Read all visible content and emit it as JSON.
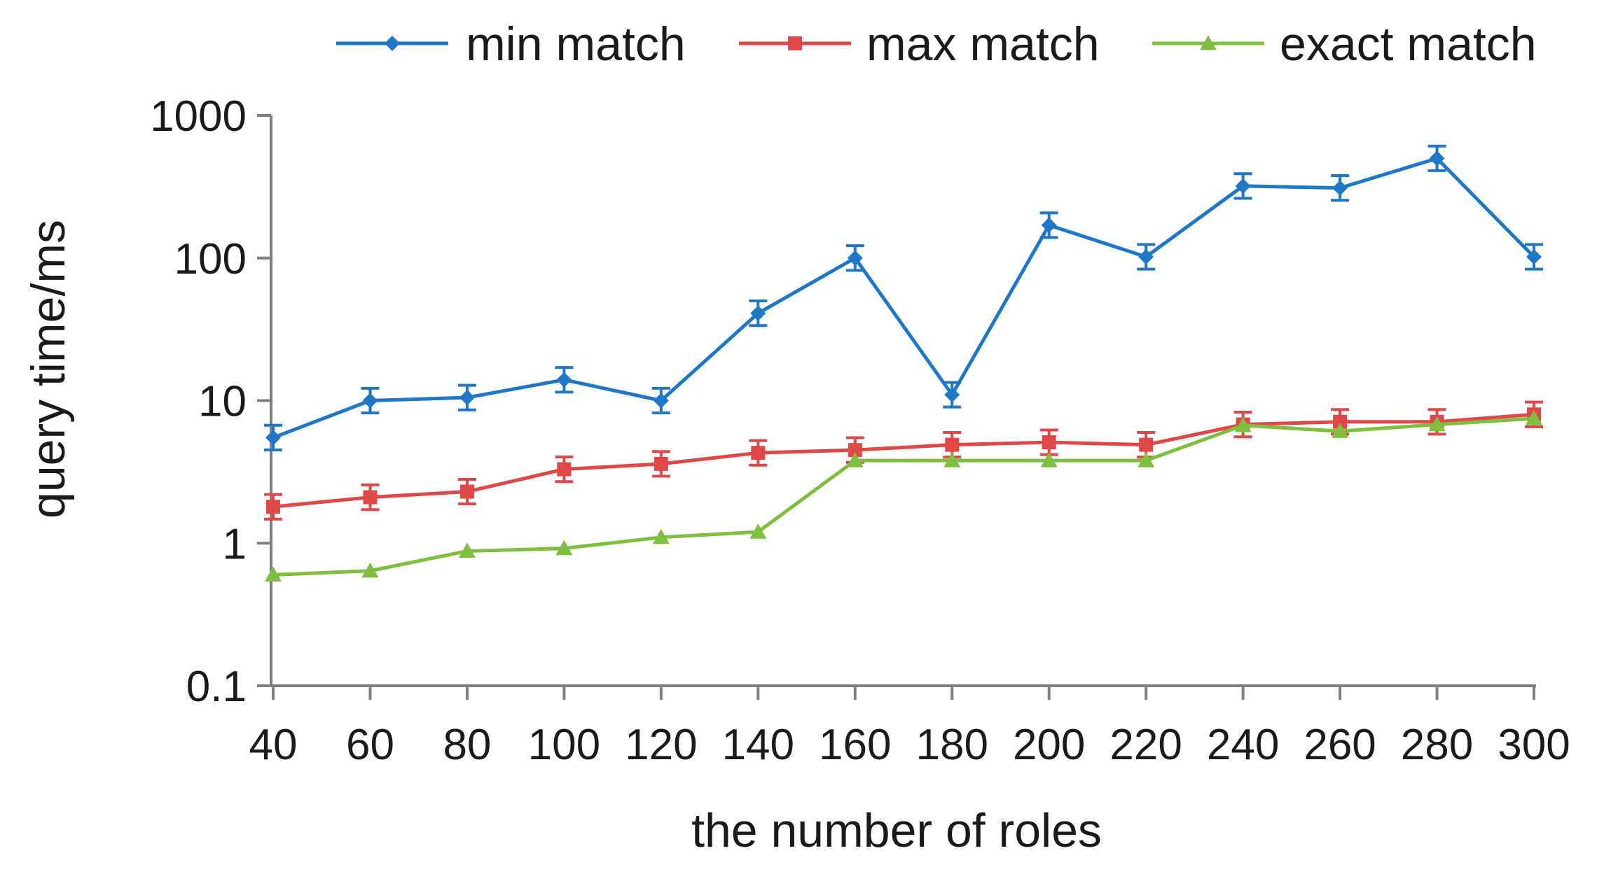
{
  "chart_data": {
    "type": "line",
    "xlabel": "the number of roles",
    "ylabel": "query time/ms",
    "yscale": "log",
    "ylim": [
      0.1,
      1000
    ],
    "y_ticks": [
      "0.1",
      "1",
      "10",
      "100",
      "1000"
    ],
    "categories": [
      "40",
      "60",
      "80",
      "100",
      "120",
      "140",
      "160",
      "180",
      "200",
      "220",
      "240",
      "260",
      "280",
      "300"
    ],
    "legend_position": "top-right",
    "grid": false,
    "series": [
      {
        "name": "min match",
        "color": "#1f77c8",
        "marker": "diamond",
        "values": [
          5.5,
          10,
          10.5,
          14,
          10,
          41,
          100,
          11,
          170,
          102,
          320,
          310,
          500,
          102
        ],
        "error_bars": true
      },
      {
        "name": "max match",
        "color": "#e04848",
        "marker": "square",
        "values": [
          1.8,
          2.1,
          2.3,
          3.3,
          3.6,
          4.3,
          4.5,
          4.9,
          5.1,
          4.9,
          6.8,
          7.1,
          7.1,
          8.0
        ],
        "error_bars": true
      },
      {
        "name": "exact match",
        "color": "#7fbf3f",
        "marker": "triangle",
        "values": [
          0.6,
          0.64,
          0.88,
          0.92,
          1.1,
          1.2,
          3.8,
          3.8,
          3.8,
          3.8,
          6.7,
          6.1,
          6.8,
          7.5
        ],
        "error_bars": false
      }
    ]
  }
}
